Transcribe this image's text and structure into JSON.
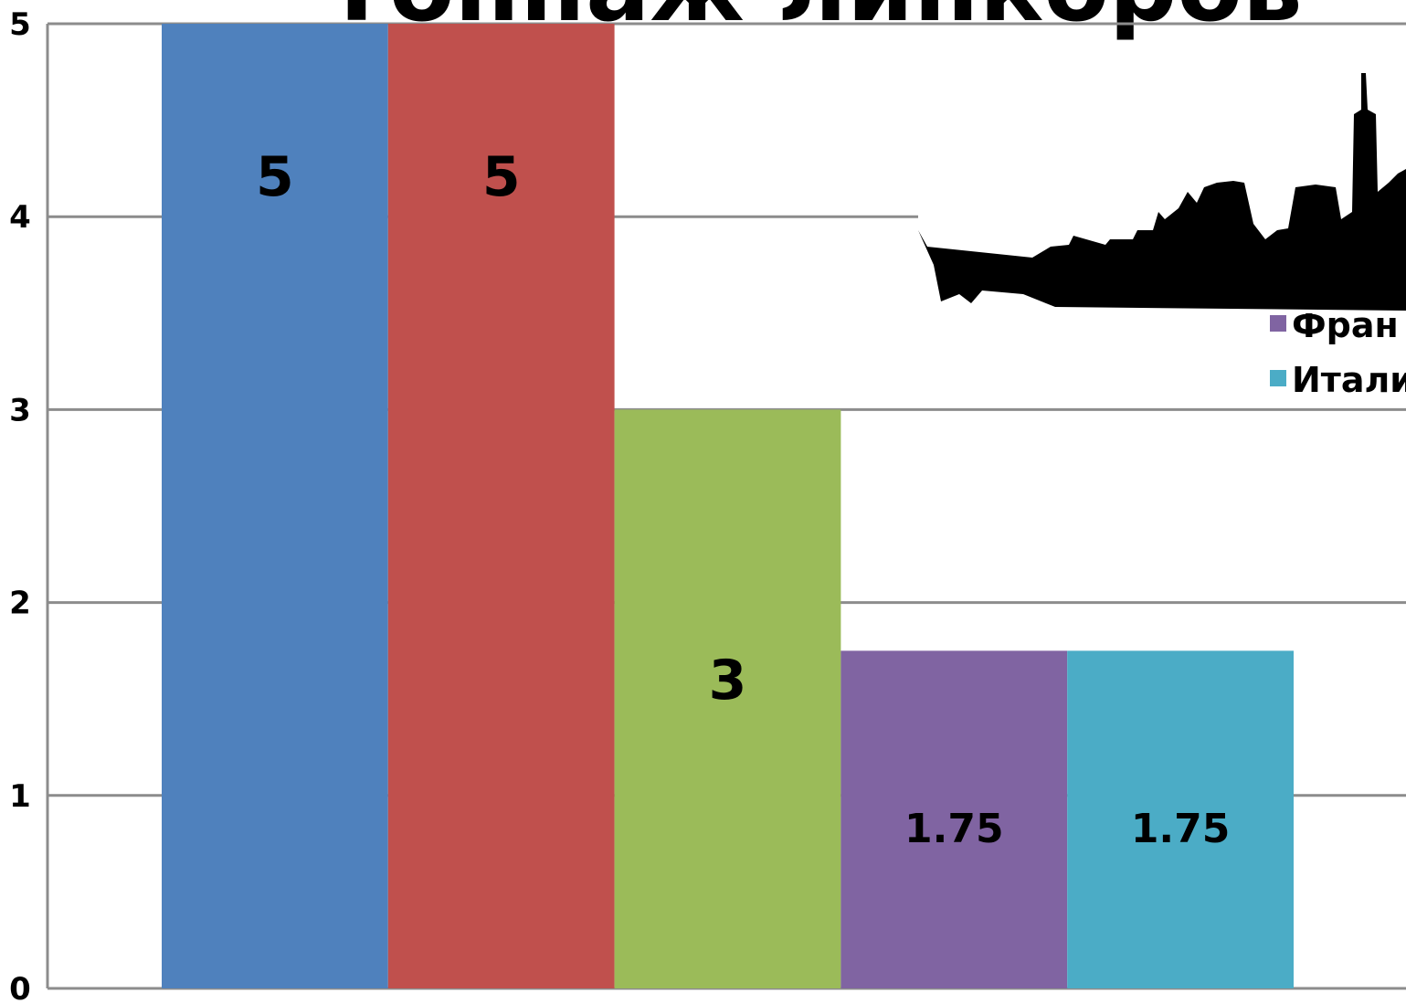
{
  "chart_data": {
    "type": "bar",
    "title": "Тоннаж линкоров",
    "series": [
      {
        "color": "#4f81bd",
        "values": [
          5
        ]
      },
      {
        "color": "#c0504d",
        "values": [
          5
        ]
      },
      {
        "color": "#9bbb59",
        "values": [
          3
        ]
      },
      {
        "name": "Фран",
        "color": "#8064a2",
        "values": [
          1.75
        ]
      },
      {
        "name": "Итали",
        "color": "#4bacc6",
        "values": [
          1.75
        ]
      }
    ],
    "ylim": [
      0,
      5
    ],
    "yticks": [
      0,
      1,
      2,
      3,
      4,
      5
    ],
    "grid": true
  }
}
